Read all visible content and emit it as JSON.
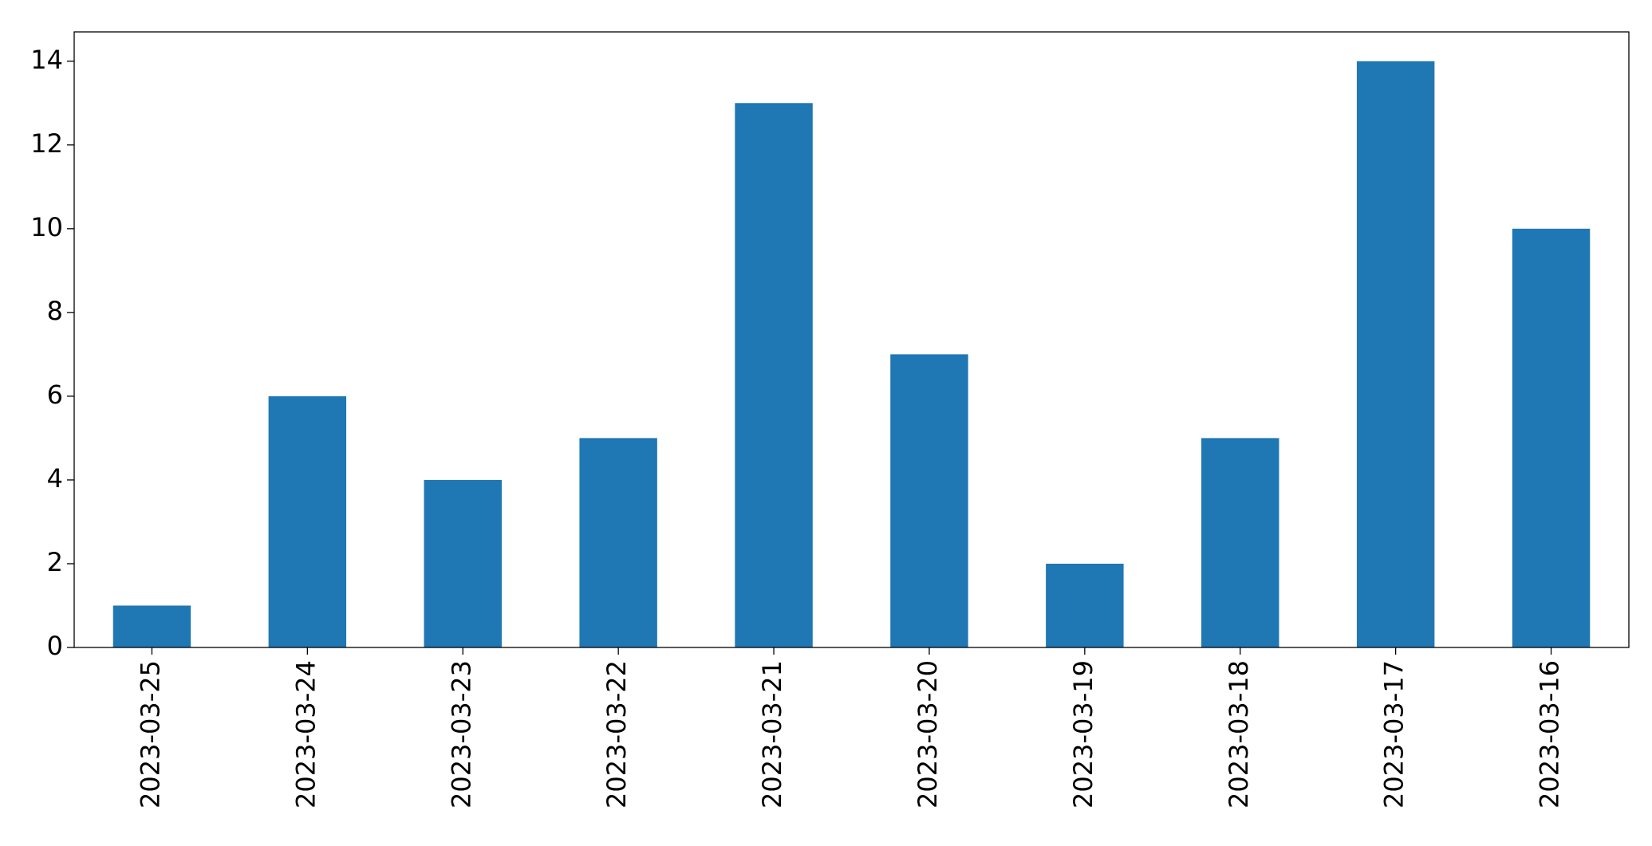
{
  "chart_data": {
    "type": "bar",
    "categories": [
      "2023-03-25",
      "2023-03-24",
      "2023-03-23",
      "2023-03-22",
      "2023-03-21",
      "2023-03-20",
      "2023-03-19",
      "2023-03-18",
      "2023-03-17",
      "2023-03-16"
    ],
    "values": [
      1,
      6,
      4,
      5,
      13,
      7,
      2,
      5,
      14,
      10
    ],
    "color": "#1f77b4",
    "ylim": [
      0,
      14.7
    ],
    "yticks": [
      0,
      2,
      4,
      6,
      8,
      10,
      12,
      14
    ],
    "grid": false
  }
}
